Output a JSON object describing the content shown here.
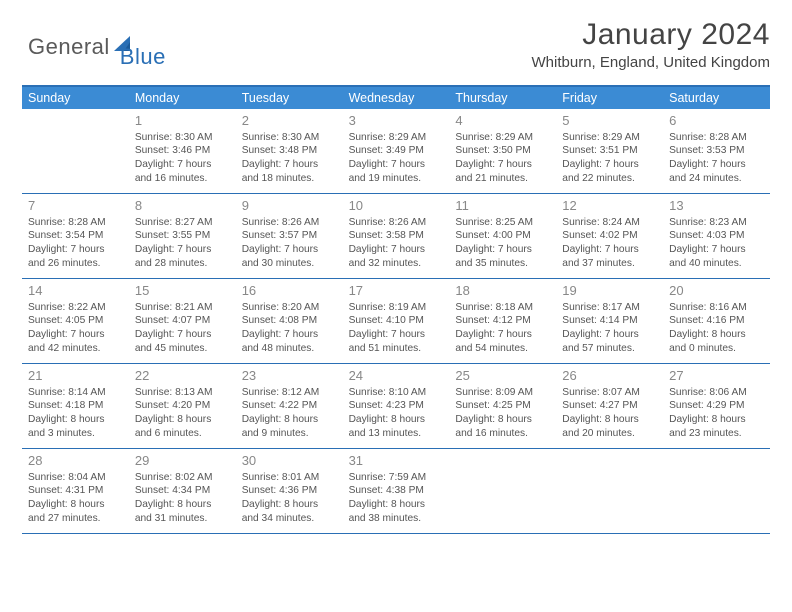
{
  "logo": {
    "text_a": "General",
    "text_b": "Blue"
  },
  "title": "January 2024",
  "location": "Whitburn, England, United Kingdom",
  "colors": {
    "accent": "#3b8bd4",
    "accent_dark": "#2a6fb5",
    "text": "#333333",
    "muted": "#888888",
    "body": "#555555",
    "bg": "#ffffff"
  },
  "day_names": [
    "Sunday",
    "Monday",
    "Tuesday",
    "Wednesday",
    "Thursday",
    "Friday",
    "Saturday"
  ],
  "weeks": [
    [
      null,
      {
        "n": "1",
        "sr": "8:30 AM",
        "ss": "3:46 PM",
        "dl": "Daylight: 7 hours and 16 minutes."
      },
      {
        "n": "2",
        "sr": "8:30 AM",
        "ss": "3:48 PM",
        "dl": "Daylight: 7 hours and 18 minutes."
      },
      {
        "n": "3",
        "sr": "8:29 AM",
        "ss": "3:49 PM",
        "dl": "Daylight: 7 hours and 19 minutes."
      },
      {
        "n": "4",
        "sr": "8:29 AM",
        "ss": "3:50 PM",
        "dl": "Daylight: 7 hours and 21 minutes."
      },
      {
        "n": "5",
        "sr": "8:29 AM",
        "ss": "3:51 PM",
        "dl": "Daylight: 7 hours and 22 minutes."
      },
      {
        "n": "6",
        "sr": "8:28 AM",
        "ss": "3:53 PM",
        "dl": "Daylight: 7 hours and 24 minutes."
      }
    ],
    [
      {
        "n": "7",
        "sr": "8:28 AM",
        "ss": "3:54 PM",
        "dl": "Daylight: 7 hours and 26 minutes."
      },
      {
        "n": "8",
        "sr": "8:27 AM",
        "ss": "3:55 PM",
        "dl": "Daylight: 7 hours and 28 minutes."
      },
      {
        "n": "9",
        "sr": "8:26 AM",
        "ss": "3:57 PM",
        "dl": "Daylight: 7 hours and 30 minutes."
      },
      {
        "n": "10",
        "sr": "8:26 AM",
        "ss": "3:58 PM",
        "dl": "Daylight: 7 hours and 32 minutes."
      },
      {
        "n": "11",
        "sr": "8:25 AM",
        "ss": "4:00 PM",
        "dl": "Daylight: 7 hours and 35 minutes."
      },
      {
        "n": "12",
        "sr": "8:24 AM",
        "ss": "4:02 PM",
        "dl": "Daylight: 7 hours and 37 minutes."
      },
      {
        "n": "13",
        "sr": "8:23 AM",
        "ss": "4:03 PM",
        "dl": "Daylight: 7 hours and 40 minutes."
      }
    ],
    [
      {
        "n": "14",
        "sr": "8:22 AM",
        "ss": "4:05 PM",
        "dl": "Daylight: 7 hours and 42 minutes."
      },
      {
        "n": "15",
        "sr": "8:21 AM",
        "ss": "4:07 PM",
        "dl": "Daylight: 7 hours and 45 minutes."
      },
      {
        "n": "16",
        "sr": "8:20 AM",
        "ss": "4:08 PM",
        "dl": "Daylight: 7 hours and 48 minutes."
      },
      {
        "n": "17",
        "sr": "8:19 AM",
        "ss": "4:10 PM",
        "dl": "Daylight: 7 hours and 51 minutes."
      },
      {
        "n": "18",
        "sr": "8:18 AM",
        "ss": "4:12 PM",
        "dl": "Daylight: 7 hours and 54 minutes."
      },
      {
        "n": "19",
        "sr": "8:17 AM",
        "ss": "4:14 PM",
        "dl": "Daylight: 7 hours and 57 minutes."
      },
      {
        "n": "20",
        "sr": "8:16 AM",
        "ss": "4:16 PM",
        "dl": "Daylight: 8 hours and 0 minutes."
      }
    ],
    [
      {
        "n": "21",
        "sr": "8:14 AM",
        "ss": "4:18 PM",
        "dl": "Daylight: 8 hours and 3 minutes."
      },
      {
        "n": "22",
        "sr": "8:13 AM",
        "ss": "4:20 PM",
        "dl": "Daylight: 8 hours and 6 minutes."
      },
      {
        "n": "23",
        "sr": "8:12 AM",
        "ss": "4:22 PM",
        "dl": "Daylight: 8 hours and 9 minutes."
      },
      {
        "n": "24",
        "sr": "8:10 AM",
        "ss": "4:23 PM",
        "dl": "Daylight: 8 hours and 13 minutes."
      },
      {
        "n": "25",
        "sr": "8:09 AM",
        "ss": "4:25 PM",
        "dl": "Daylight: 8 hours and 16 minutes."
      },
      {
        "n": "26",
        "sr": "8:07 AM",
        "ss": "4:27 PM",
        "dl": "Daylight: 8 hours and 20 minutes."
      },
      {
        "n": "27",
        "sr": "8:06 AM",
        "ss": "4:29 PM",
        "dl": "Daylight: 8 hours and 23 minutes."
      }
    ],
    [
      {
        "n": "28",
        "sr": "8:04 AM",
        "ss": "4:31 PM",
        "dl": "Daylight: 8 hours and 27 minutes."
      },
      {
        "n": "29",
        "sr": "8:02 AM",
        "ss": "4:34 PM",
        "dl": "Daylight: 8 hours and 31 minutes."
      },
      {
        "n": "30",
        "sr": "8:01 AM",
        "ss": "4:36 PM",
        "dl": "Daylight: 8 hours and 34 minutes."
      },
      {
        "n": "31",
        "sr": "7:59 AM",
        "ss": "4:38 PM",
        "dl": "Daylight: 8 hours and 38 minutes."
      },
      null,
      null,
      null
    ]
  ],
  "labels": {
    "sunrise": "Sunrise:",
    "sunset": "Sunset:"
  }
}
